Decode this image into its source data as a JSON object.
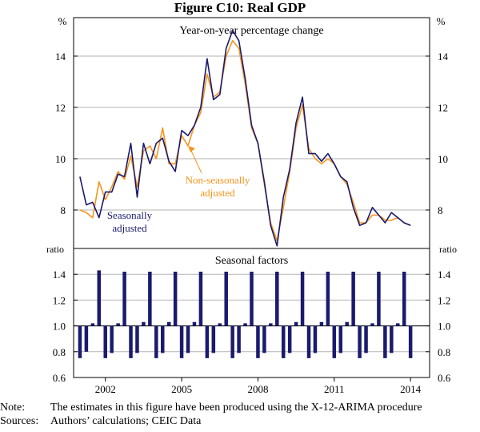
{
  "figure_title": "Figure C10: Real GDP",
  "note_label": "Note:",
  "note_text": "The estimates in this figure have been produced using the X-12-ARIMA procedure",
  "sources_label": "Sources:",
  "sources_text": "Authors’ calculations; CEIC Data",
  "chart_data": [
    {
      "type": "line",
      "title": "Year-on-year percentage change",
      "ylabel_left": "%",
      "ylabel_right": "%",
      "ylim": [
        6.5,
        15.5
      ],
      "yticks": [
        8,
        10,
        12,
        14
      ],
      "xlim": [
        2000.75,
        2014.75
      ],
      "xticks": [
        2002,
        2005,
        2008,
        2011,
        2014
      ],
      "x": [
        2001.0,
        2001.25,
        2001.5,
        2001.75,
        2002.0,
        2002.25,
        2002.5,
        2002.75,
        2003.0,
        2003.25,
        2003.5,
        2003.75,
        2004.0,
        2004.25,
        2004.5,
        2004.75,
        2005.0,
        2005.25,
        2005.5,
        2005.75,
        2006.0,
        2006.25,
        2006.5,
        2006.75,
        2007.0,
        2007.25,
        2007.5,
        2007.75,
        2008.0,
        2008.25,
        2008.5,
        2008.75,
        2009.0,
        2009.25,
        2009.5,
        2009.75,
        2010.0,
        2010.25,
        2010.5,
        2010.75,
        2011.0,
        2011.25,
        2011.5,
        2011.75,
        2012.0,
        2012.25,
        2012.5,
        2012.75,
        2013.0,
        2013.25,
        2013.5,
        2013.75,
        2014.0
      ],
      "series": [
        {
          "name": "Seasonally adjusted",
          "color": "#1a1a6e",
          "values": [
            9.3,
            8.2,
            8.3,
            7.7,
            8.7,
            8.7,
            9.4,
            9.3,
            10.6,
            8.5,
            10.6,
            9.8,
            10.6,
            10.8,
            9.9,
            9.5,
            11.1,
            10.9,
            11.3,
            12.0,
            13.9,
            12.3,
            12.5,
            14.3,
            15.0,
            14.6,
            13.1,
            11.3,
            10.6,
            9.1,
            7.4,
            6.6,
            8.5,
            9.6,
            11.4,
            12.4,
            10.2,
            10.2,
            9.9,
            10.2,
            9.8,
            9.3,
            9.1,
            8.1,
            7.4,
            7.5,
            8.1,
            7.8,
            7.5,
            7.9,
            7.7,
            7.5,
            7.4
          ]
        },
        {
          "name": "Non-seasonally adjusted",
          "color": "#f7941d",
          "values": [
            8.0,
            7.9,
            7.7,
            9.1,
            8.4,
            8.9,
            9.5,
            9.2,
            10.1,
            8.9,
            10.3,
            10.5,
            10.0,
            11.2,
            9.8,
            9.8,
            10.9,
            10.5,
            11.3,
            11.8,
            13.3,
            12.4,
            12.6,
            14.0,
            14.6,
            14.3,
            12.9,
            11.2,
            10.6,
            9.0,
            7.5,
            6.8,
            8.1,
            9.5,
            11.2,
            12.1,
            10.4,
            10.0,
            9.8,
            10.0,
            9.8,
            9.3,
            9.0,
            8.3,
            7.5,
            7.5,
            7.8,
            7.8,
            7.6,
            7.6,
            7.7,
            7.5,
            7.4
          ]
        }
      ],
      "annotations": [
        {
          "text": [
            "Non-seasonally",
            "adjusted"
          ],
          "color": "#f7941d",
          "arrow_to_x": 2005.25,
          "arrow_to_y": 10.5
        },
        {
          "text": [
            "Seasonally",
            "adjusted"
          ],
          "color": "#1a1a6e",
          "arrow_to_x": 2001.9,
          "arrow_to_y": 7.8
        }
      ]
    },
    {
      "type": "bar",
      "title": "Seasonal factors",
      "ylabel_left": "ratio",
      "ylabel_right": "ratio",
      "ylim": [
        0.6,
        1.6
      ],
      "yticks": [
        0.6,
        0.8,
        1.0,
        1.2,
        1.4
      ],
      "baseline": 1.0,
      "color": "#1a1a6e",
      "x": [
        2001.0,
        2001.25,
        2001.5,
        2001.75,
        2002.0,
        2002.25,
        2002.5,
        2002.75,
        2003.0,
        2003.25,
        2003.5,
        2003.75,
        2004.0,
        2004.25,
        2004.5,
        2004.75,
        2005.0,
        2005.25,
        2005.5,
        2005.75,
        2006.0,
        2006.25,
        2006.5,
        2006.75,
        2007.0,
        2007.25,
        2007.5,
        2007.75,
        2008.0,
        2008.25,
        2008.5,
        2008.75,
        2009.0,
        2009.25,
        2009.5,
        2009.75,
        2010.0,
        2010.25,
        2010.5,
        2010.75,
        2011.0,
        2011.25,
        2011.5,
        2011.75,
        2012.0,
        2012.25,
        2012.5,
        2012.75,
        2013.0,
        2013.25,
        2013.5,
        2013.75,
        2014.0
      ],
      "values": [
        0.75,
        0.8,
        1.02,
        1.43,
        0.75,
        0.79,
        1.02,
        1.42,
        0.75,
        0.79,
        1.03,
        1.42,
        0.75,
        0.79,
        1.03,
        1.42,
        0.75,
        0.79,
        1.03,
        1.42,
        0.75,
        0.79,
        1.02,
        1.42,
        0.75,
        0.79,
        1.02,
        1.42,
        0.75,
        0.79,
        1.02,
        1.42,
        0.75,
        0.79,
        1.03,
        1.42,
        0.75,
        0.79,
        1.03,
        1.42,
        0.75,
        0.79,
        1.03,
        1.42,
        0.75,
        0.79,
        1.02,
        1.42,
        0.75,
        0.79,
        1.02,
        1.42,
        0.75
      ]
    }
  ]
}
